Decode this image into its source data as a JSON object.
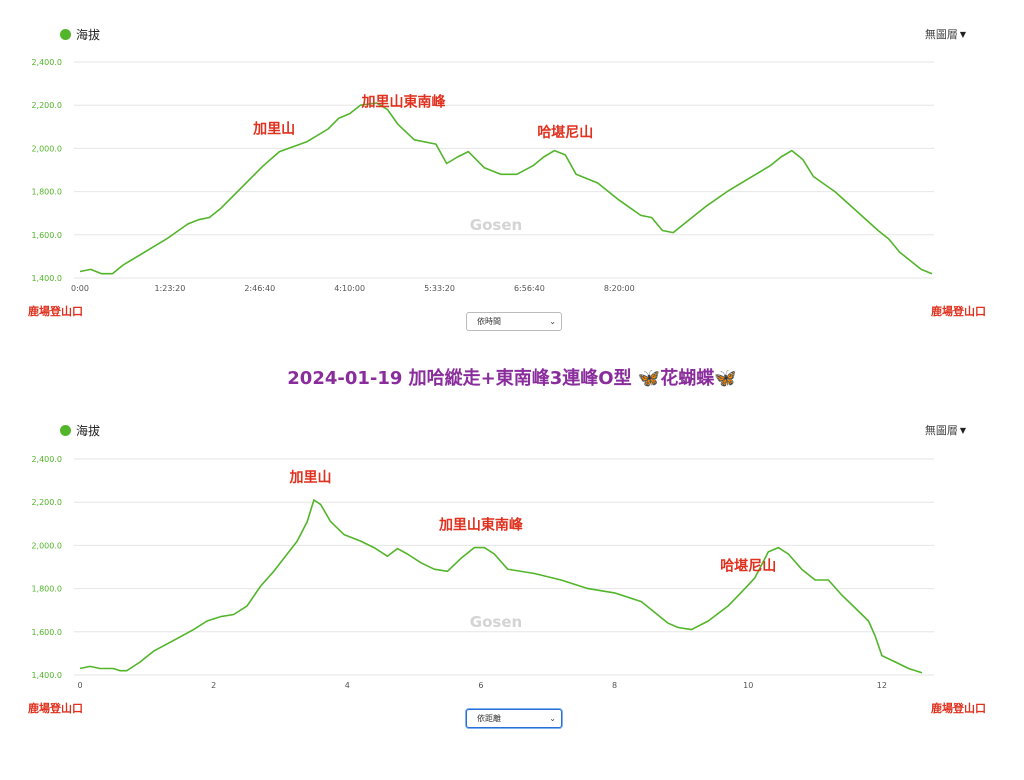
{
  "page_title": "2024-01-19 加哈縱走+東南峰3連峰O型",
  "title_suffix": "花蝴蝶",
  "title_emoji": "🦋",
  "colors": {
    "line": "#52b52a",
    "axis_label": "#52b52a",
    "peak_label": "#e0301e",
    "title": "#8a2d9c",
    "grid": "#e6e6e6"
  },
  "panels": [
    {
      "legend_label": "海拔",
      "layer_label": "無圖層",
      "start_label": "鹿場登山口",
      "end_label": "鹿場登山口",
      "mode_label": "依時間",
      "watermark": "Gosen",
      "peaks": [
        {
          "name": "加里山",
          "x_s": 10800
        },
        {
          "name": "加里山東南峰",
          "x_s": 18000
        },
        {
          "name": "哈堪尼山",
          "x_s": 27000
        }
      ],
      "chart_data": {
        "type": "area",
        "series": [
          {
            "values": [
              [
                0,
                1430
              ],
              [
                600,
                1440
              ],
              [
                1200,
                1420
              ],
              [
                1800,
                1420
              ],
              [
                2400,
                1460
              ],
              [
                3600,
                1520
              ],
              [
                4800,
                1580
              ],
              [
                6000,
                1650
              ],
              [
                6600,
                1670
              ],
              [
                7200,
                1680
              ],
              [
                7800,
                1720
              ],
              [
                9000,
                1820
              ],
              [
                10200,
                1920
              ],
              [
                11100,
                1985
              ],
              [
                12600,
                2030
              ],
              [
                13800,
                2090
              ],
              [
                14400,
                2140
              ],
              [
                15000,
                2160
              ],
              [
                15600,
                2200
              ],
              [
                16500,
                2210
              ],
              [
                17100,
                2180
              ],
              [
                17700,
                2110
              ],
              [
                18600,
                2040
              ],
              [
                19800,
                2020
              ],
              [
                20400,
                1930
              ],
              [
                21000,
                1960
              ],
              [
                21600,
                1985
              ],
              [
                22500,
                1910
              ],
              [
                23400,
                1880
              ],
              [
                24300,
                1880
              ],
              [
                25200,
                1920
              ],
              [
                25800,
                1960
              ],
              [
                26400,
                1990
              ],
              [
                27000,
                1970
              ],
              [
                27600,
                1880
              ],
              [
                28800,
                1840
              ],
              [
                30000,
                1760
              ],
              [
                31200,
                1690
              ],
              [
                31800,
                1680
              ],
              [
                32400,
                1620
              ],
              [
                33000,
                1610
              ],
              [
                33600,
                1650
              ],
              [
                34800,
                1730
              ],
              [
                36000,
                1800
              ],
              [
                37200,
                1860
              ],
              [
                38400,
                1920
              ],
              [
                39000,
                1960
              ],
              [
                39600,
                1990
              ],
              [
                40200,
                1950
              ],
              [
                40800,
                1870
              ],
              [
                42000,
                1800
              ],
              [
                43200,
                1710
              ],
              [
                44400,
                1620
              ],
              [
                45000,
                1580
              ],
              [
                45600,
                1520
              ],
              [
                46200,
                1480
              ],
              [
                46800,
                1440
              ],
              [
                47400,
                1420
              ]
            ]
          }
        ],
        "xlim": [
          0,
          47400
        ],
        "ylim": [
          1400,
          2400
        ],
        "yticks": [
          "1,400.0",
          "1,600.0",
          "1,800.0",
          "2,000.0",
          "2,200.0",
          "2,400.0"
        ],
        "ytick_values": [
          1400,
          1600,
          1800,
          2000,
          2200,
          2400
        ],
        "xticks": [
          "0:00",
          "1:23:20",
          "2:46:40",
          "4:10:00",
          "5:33:20",
          "6:56:40",
          "8:20:00"
        ],
        "xtick_values": [
          0,
          5000,
          10000,
          15000,
          20000,
          25000,
          30000
        ],
        "grid": true
      }
    },
    {
      "legend_label": "海拔",
      "layer_label": "無圖層",
      "start_label": "鹿場登山口",
      "end_label": "鹿場登山口",
      "mode_label": "依距離",
      "watermark": "Gosen",
      "peaks": [
        {
          "name": "加里山",
          "x_s": 3.45
        },
        {
          "name": "加里山東南峰",
          "x_s": 6.0
        },
        {
          "name": "哈堪尼山",
          "x_s": 10.0
        }
      ],
      "chart_data": {
        "type": "area",
        "series": [
          {
            "values": [
              [
                0,
                1430
              ],
              [
                0.15,
                1440
              ],
              [
                0.3,
                1430
              ],
              [
                0.5,
                1430
              ],
              [
                0.6,
                1420
              ],
              [
                0.7,
                1420
              ],
              [
                0.9,
                1460
              ],
              [
                1.1,
                1510
              ],
              [
                1.4,
                1560
              ],
              [
                1.7,
                1610
              ],
              [
                1.9,
                1650
              ],
              [
                2.1,
                1670
              ],
              [
                2.3,
                1680
              ],
              [
                2.5,
                1720
              ],
              [
                2.7,
                1810
              ],
              [
                2.9,
                1880
              ],
              [
                3.1,
                1960
              ],
              [
                3.25,
                2020
              ],
              [
                3.4,
                2110
              ],
              [
                3.5,
                2210
              ],
              [
                3.6,
                2190
              ],
              [
                3.75,
                2110
              ],
              [
                3.95,
                2050
              ],
              [
                4.2,
                2020
              ],
              [
                4.4,
                1990
              ],
              [
                4.6,
                1950
              ],
              [
                4.75,
                1985
              ],
              [
                4.9,
                1960
              ],
              [
                5.1,
                1920
              ],
              [
                5.3,
                1890
              ],
              [
                5.5,
                1880
              ],
              [
                5.7,
                1940
              ],
              [
                5.9,
                1990
              ],
              [
                6.05,
                1990
              ],
              [
                6.2,
                1960
              ],
              [
                6.4,
                1890
              ],
              [
                6.8,
                1870
              ],
              [
                7.2,
                1840
              ],
              [
                7.6,
                1800
              ],
              [
                8.0,
                1780
              ],
              [
                8.4,
                1740
              ],
              [
                8.6,
                1690
              ],
              [
                8.8,
                1640
              ],
              [
                8.95,
                1620
              ],
              [
                9.15,
                1610
              ],
              [
                9.4,
                1650
              ],
              [
                9.7,
                1720
              ],
              [
                9.95,
                1800
              ],
              [
                10.1,
                1850
              ],
              [
                10.3,
                1970
              ],
              [
                10.45,
                1990
              ],
              [
                10.6,
                1960
              ],
              [
                10.8,
                1890
              ],
              [
                11.0,
                1840
              ],
              [
                11.2,
                1840
              ],
              [
                11.4,
                1770
              ],
              [
                11.6,
                1710
              ],
              [
                11.8,
                1650
              ],
              [
                11.9,
                1580
              ],
              [
                12.0,
                1490
              ],
              [
                12.2,
                1460
              ],
              [
                12.4,
                1430
              ],
              [
                12.6,
                1410
              ]
            ]
          }
        ],
        "xlim": [
          0,
          12.6
        ],
        "ylim": [
          1400,
          2400
        ],
        "yticks": [
          "1,400.0",
          "1,600.0",
          "1,800.0",
          "2,000.0",
          "2,200.0",
          "2,400.0"
        ],
        "ytick_values": [
          1400,
          1600,
          1800,
          2000,
          2200,
          2400
        ],
        "xticks": [
          "0",
          "2",
          "4",
          "6",
          "8",
          "10",
          "12"
        ],
        "xtick_values": [
          0,
          2,
          4,
          6,
          8,
          10,
          12
        ],
        "grid": true
      }
    }
  ]
}
